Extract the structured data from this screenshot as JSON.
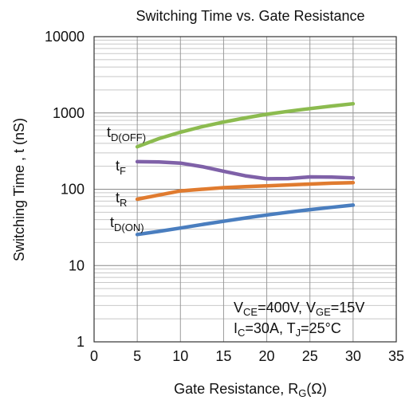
{
  "chart_data": {
    "type": "line",
    "title": "Switching Time vs. Gate Resistance",
    "xlabel": {
      "main": "Gate Resistance, R",
      "sub": "G",
      "unit": "(Ω)"
    },
    "ylabel": "Switching Time , t (nS)",
    "x_range": [
      0,
      35
    ],
    "x_ticks": [
      "0",
      "5",
      "10",
      "15",
      "20",
      "25",
      "30",
      "35"
    ],
    "y_scale": "log",
    "y_range": [
      1,
      10000
    ],
    "y_ticks": [
      "1",
      "10",
      "100",
      "1000",
      "10000"
    ],
    "grid": true,
    "conditions": [
      [
        {
          "t": "V",
          "sub": false
        },
        {
          "t": "CE",
          "sub": true
        },
        {
          "t": "=400V, V",
          "sub": false
        },
        {
          "t": "GE",
          "sub": true
        },
        {
          "t": "=15V",
          "sub": false
        }
      ],
      [
        {
          "t": "I",
          "sub": false
        },
        {
          "t": "C",
          "sub": true
        },
        {
          "t": "=30A, T",
          "sub": false
        },
        {
          "t": "J",
          "sub": true
        },
        {
          "t": "=25°C",
          "sub": false
        }
      ]
    ],
    "series": [
      {
        "name": "t",
        "name_sub": "D(OFF)",
        "color": "#8cbb4f",
        "x": [
          5,
          7.5,
          10,
          12.5,
          15,
          17.5,
          20,
          22.5,
          25,
          27.5,
          30
        ],
        "y": [
          360,
          460,
          560,
          660,
          760,
          860,
          960,
          1050,
          1140,
          1230,
          1320
        ]
      },
      {
        "name": "t",
        "name_sub": "F",
        "color": "#7f61a8",
        "x": [
          5,
          7.5,
          10,
          12.5,
          15,
          17.5,
          20,
          22.5,
          25,
          27.5,
          30
        ],
        "y": [
          230,
          228,
          220,
          198,
          172,
          150,
          137,
          138,
          145,
          144,
          141
        ]
      },
      {
        "name": "t",
        "name_sub": "R",
        "color": "#e07b2f",
        "x": [
          5,
          7.5,
          10,
          12.5,
          15,
          17.5,
          20,
          22.5,
          25,
          27.5,
          30
        ],
        "y": [
          74,
          84,
          95,
          100,
          105,
          108,
          111,
          114,
          117,
          120,
          122
        ]
      },
      {
        "name": "t",
        "name_sub": "D(ON)",
        "color": "#4a7ebf",
        "x": [
          5,
          7.5,
          10,
          12.5,
          15,
          17.5,
          20,
          22.5,
          25,
          27.5,
          30
        ],
        "y": [
          25.5,
          28,
          31,
          34.5,
          38,
          42,
          46,
          50,
          54,
          58,
          62
        ]
      }
    ]
  }
}
